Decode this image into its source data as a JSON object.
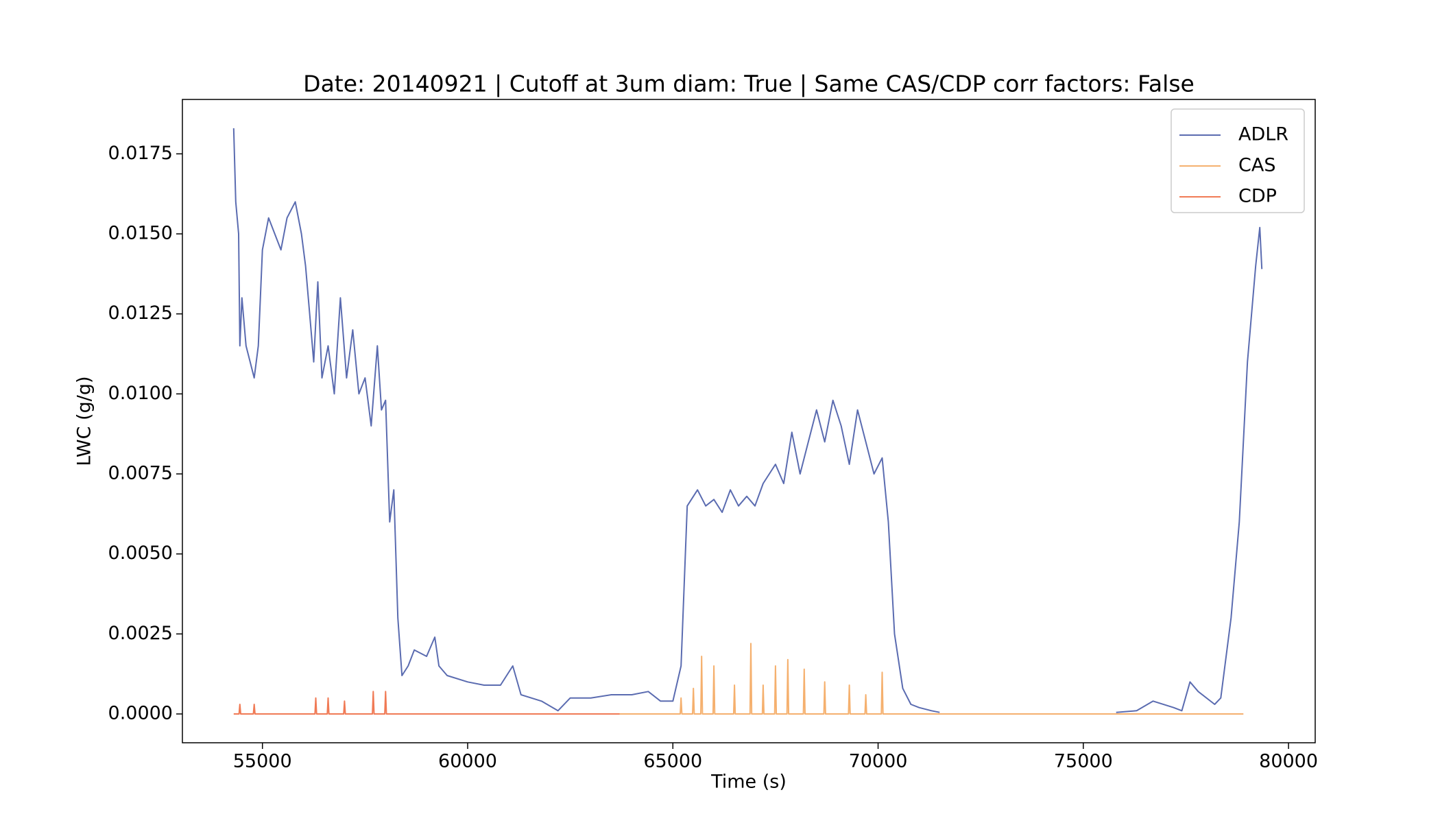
{
  "chart_data": {
    "type": "line",
    "title": "Date: 20140921 | Cutoff at 3um diam: True | Same CAS/CDP corr factors: False",
    "x_label": "Time (s)",
    "y_label": "LWC (g/g)",
    "xlim": [
      53050,
      80650
    ],
    "ylim": [
      -0.0009,
      0.0192
    ],
    "xticks": [
      55000,
      60000,
      65000,
      70000,
      75000,
      80000
    ],
    "yticks": [
      {
        "value": 0,
        "label": "0.0000"
      },
      {
        "value": 0.0025,
        "label": "0.0025"
      },
      {
        "value": 0.005,
        "label": "0.0050"
      },
      {
        "value": 0.0075,
        "label": "0.0075"
      },
      {
        "value": 0.01,
        "label": "0.0100"
      },
      {
        "value": 0.0125,
        "label": "0.0125"
      },
      {
        "value": 0.015,
        "label": "0.0150"
      },
      0.0175
    ],
    "legend": "upper right",
    "series": [
      {
        "name": "ADLR",
        "color": "#5a6bb0",
        "x": [
          54300,
          54350,
          54420,
          54450,
          54500,
          54600,
          54700,
          54800,
          54900,
          55000,
          55150,
          55300,
          55450,
          55600,
          55800,
          55950,
          56050,
          56150,
          56250,
          56350,
          56450,
          56600,
          56750,
          56900,
          57050,
          57200,
          57350,
          57500,
          57650,
          57800,
          57900,
          58000,
          58100,
          58200,
          58300,
          58400,
          58550,
          58700,
          59000,
          59200,
          59300,
          59500,
          60000,
          60400,
          60800,
          61100,
          61300,
          61800,
          62200,
          62500,
          63000,
          63500,
          64000,
          64400,
          64700,
          65000,
          65200,
          65350,
          65600,
          65800,
          66000,
          66200,
          66400,
          66600,
          66800,
          67000,
          67200,
          67500,
          67700,
          67900,
          68100,
          68300,
          68500,
          68700,
          68900,
          69100,
          69300,
          69500,
          69700,
          69900,
          70100,
          70250,
          70400,
          70600,
          70800,
          71000,
          71300,
          71500,
          73500,
          75800,
          76300,
          76700,
          77200,
          77400,
          77600,
          77800,
          78200,
          78350,
          78600,
          78800,
          79000,
          79200,
          79300,
          79350
        ],
        "values": [
          0.0183,
          0.016,
          0.015,
          0.0115,
          0.013,
          0.0115,
          0.011,
          0.0105,
          0.0115,
          0.0145,
          0.0155,
          0.015,
          0.0145,
          0.0155,
          0.016,
          0.015,
          0.014,
          0.0125,
          0.011,
          0.0135,
          0.0105,
          0.0115,
          0.01,
          0.013,
          0.0105,
          0.012,
          0.01,
          0.0105,
          0.009,
          0.0115,
          0.0095,
          0.0098,
          0.006,
          0.007,
          0.003,
          0.0012,
          0.0015,
          0.002,
          0.0018,
          0.0024,
          0.0015,
          0.0012,
          0.001,
          0.0009,
          0.0009,
          0.0015,
          0.0006,
          0.0004,
          0.0001,
          0.0005,
          0.0005,
          0.0006,
          0.0006,
          0.0007,
          0.0004,
          0.0004,
          0.0015,
          0.0065,
          0.007,
          0.0065,
          0.0067,
          0.0063,
          0.007,
          0.0065,
          0.0068,
          0.0065,
          0.0072,
          0.0078,
          0.0072,
          0.0088,
          0.0075,
          0.0085,
          0.0095,
          0.0085,
          0.0098,
          0.009,
          0.0078,
          0.0095,
          0.0085,
          0.0075,
          0.008,
          0.006,
          0.0025,
          0.0008,
          0.0003,
          0.0002,
          0.0001,
          5e-05,
          null,
          5e-05,
          0.0001,
          0.0004,
          0.0002,
          0.0001,
          0.001,
          0.0007,
          0.0003,
          0.0005,
          0.003,
          0.006,
          0.011,
          0.014,
          0.0152,
          0.0139
        ]
      },
      {
        "name": "CAS",
        "color": "#f5b06e",
        "x": [
          63700,
          65180,
          65200,
          65220,
          65480,
          65500,
          65520,
          65680,
          65700,
          65720,
          65980,
          66000,
          66020,
          66480,
          66500,
          66520,
          66880,
          66900,
          66920,
          67180,
          67200,
          67220,
          67480,
          67500,
          67520,
          67780,
          67800,
          67820,
          68180,
          68200,
          68220,
          68680,
          68700,
          68720,
          69280,
          69300,
          69320,
          69680,
          69700,
          69720,
          70080,
          70100,
          70120,
          78900
        ],
        "values": [
          0,
          0,
          0.0005,
          0,
          0,
          0.0008,
          0,
          0,
          0.0018,
          0,
          0,
          0.0015,
          0,
          0,
          0.0009,
          0,
          0,
          0.0022,
          0,
          0,
          0.0009,
          0,
          0,
          0.0015,
          0,
          0,
          0.0017,
          0,
          0,
          0.0014,
          0,
          0,
          0.001,
          0,
          0,
          0.0009,
          0,
          0,
          0.0006,
          0,
          0,
          0.0013,
          0,
          0
        ]
      },
      {
        "name": "CDP",
        "color": "#f07a55",
        "x": [
          54300,
          54430,
          54450,
          54470,
          54780,
          54800,
          54820,
          56280,
          56300,
          56320,
          56580,
          56600,
          56620,
          56980,
          57000,
          57020,
          57680,
          57700,
          57720,
          57980,
          58000,
          58020,
          63700
        ],
        "values": [
          0,
          0,
          0.0003,
          0,
          0,
          0.0003,
          0,
          0,
          0.0005,
          0,
          0,
          0.0005,
          0,
          0,
          0.0004,
          0,
          0,
          0.0007,
          0,
          0,
          0.0007,
          0,
          0
        ]
      }
    ]
  }
}
